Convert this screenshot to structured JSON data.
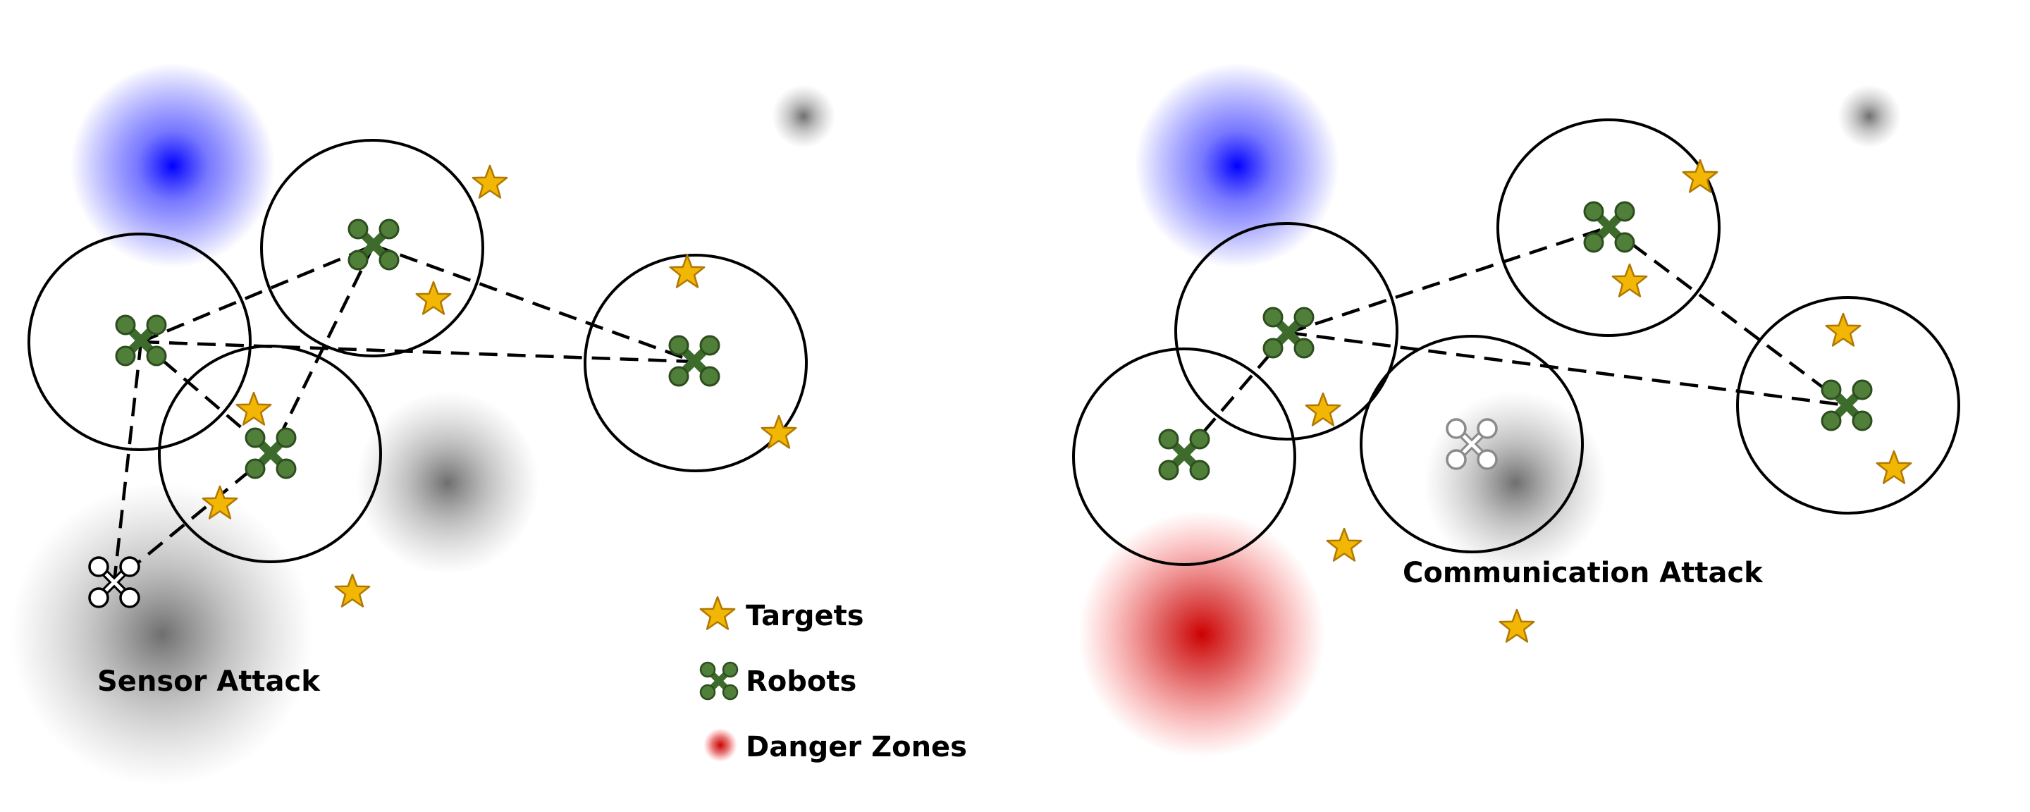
{
  "panels": [
    {
      "caption": "Sensor Attack",
      "robots": [
        {
          "id": "a1",
          "state": "normal"
        },
        {
          "id": "a2",
          "state": "normal"
        },
        {
          "id": "a3",
          "state": "normal"
        },
        {
          "id": "a4",
          "state": "normal"
        },
        {
          "id": "a5",
          "state": "compromised"
        }
      ],
      "links": [
        [
          "a1",
          "a2"
        ],
        [
          "a1",
          "a3"
        ],
        [
          "a1",
          "a4"
        ],
        [
          "a1",
          "a5"
        ],
        [
          "a2",
          "a3"
        ],
        [
          "a2",
          "a4"
        ],
        [
          "a3",
          "a5"
        ]
      ]
    },
    {
      "caption": "Communication Attack",
      "robots": [
        {
          "id": "b1",
          "state": "normal"
        },
        {
          "id": "b2",
          "state": "normal"
        },
        {
          "id": "b3",
          "state": "normal"
        },
        {
          "id": "b4",
          "state": "isolated"
        },
        {
          "id": "b5",
          "state": "normal"
        }
      ],
      "links": [
        [
          "b1",
          "b2"
        ],
        [
          "b1",
          "b3"
        ],
        [
          "b1",
          "b5"
        ],
        [
          "b2",
          "b3"
        ]
      ]
    }
  ],
  "legend": {
    "targets": "Targets",
    "robots": "Robots",
    "danger_zones": "Danger Zones"
  },
  "colors": {
    "robot": "#4a7a35",
    "robot_stroke": "#2e4d1f",
    "target": "#f2b705",
    "target_stroke": "#b07800",
    "danger": "#cc0000",
    "blue_zone": "#0000ff",
    "gray_zone": "#555555"
  }
}
